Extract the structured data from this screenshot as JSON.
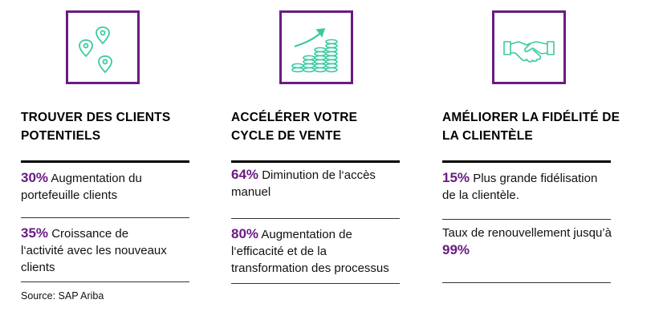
{
  "accent_color": "#6a1b82",
  "icon_color": "#3cc9a0",
  "columns": [
    {
      "icon": "map-pins-icon",
      "heading": "TROUVER DES CLIENTS\nPOTENTIELS",
      "stats": [
        {
          "pct": "30%",
          "text": " Augmentation du\nportefeuille clients"
        },
        {
          "pct": "35%",
          "text": " Croissance de\nl‘activité avec les nouveaux\nclients"
        }
      ]
    },
    {
      "icon": "growing-coins-icon",
      "heading": "ACCÉLÉRER VOTRE\nCYCLE DE VENTE",
      "stats": [
        {
          "pct": "64%",
          "text": " Diminution de l‘accès\nmanuel"
        },
        {
          "pct": "80%",
          "text": " Augmentation de\nl‘efficacité et de la\ntransformation des processus"
        }
      ]
    },
    {
      "icon": "handshake-icon",
      "heading": "AMÉLIORER LA FIDÉLITÉ DE\nLA CLIENTÈLE",
      "stats": [
        {
          "pct": "15%",
          "text": " Plus grande fidélisation\nde la clientèle."
        },
        {
          "pre": "Taux de renouvellement jusqu’à\n",
          "pct": "99%"
        }
      ]
    }
  ],
  "source": "Source: SAP Ariba"
}
